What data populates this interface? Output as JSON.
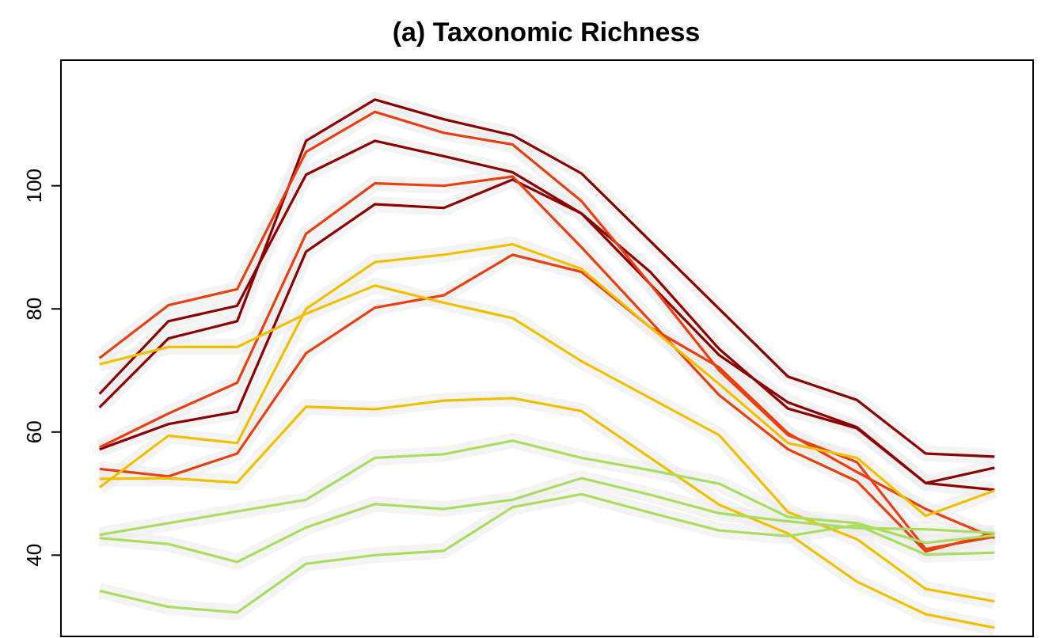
{
  "chart_data": {
    "type": "line",
    "title": "(a) Taxonomic Richness",
    "xlabel": "",
    "ylabel": "",
    "x": [
      1,
      2,
      3,
      4,
      5,
      6,
      7,
      8,
      9,
      10,
      11,
      12,
      13,
      14
    ],
    "xlim": [
      0.44,
      14.56
    ],
    "ylim": [
      26.8,
      120.4
    ],
    "yticks": [
      40,
      60,
      80,
      100
    ],
    "grid": false,
    "legend": "none",
    "confidence_band_color": "#ebebeb",
    "series": [
      {
        "color": "#8b0000",
        "values": [
          64,
          75.2,
          78,
          107.3,
          114,
          110.8,
          108.2,
          102,
          91,
          80,
          69,
          65.2,
          56.5,
          56
        ]
      },
      {
        "color": "#8b0000",
        "values": [
          66.2,
          78,
          80.5,
          101.8,
          107.3,
          104.8,
          102.2,
          95.5,
          86,
          73.5,
          63.8,
          60.6,
          51.7,
          54.2
        ]
      },
      {
        "color": "#8b0000",
        "values": [
          57.2,
          61.3,
          63.3,
          89.3,
          97,
          96.4,
          101,
          95.5,
          84,
          72.5,
          64.8,
          60.8,
          51.7,
          50.6
        ]
      },
      {
        "color": "#e84010",
        "values": [
          72,
          80.6,
          83.2,
          105.5,
          112,
          108.6,
          106.7,
          97.5,
          84,
          70,
          59.5,
          55.1,
          41,
          43
        ]
      },
      {
        "color": "#e84010",
        "values": [
          57.5,
          63,
          68,
          92.2,
          100.4,
          100,
          101.5,
          90,
          78,
          66,
          57.2,
          52,
          40.6,
          43.6
        ]
      },
      {
        "color": "#e84010",
        "values": [
          54,
          52.8,
          56.5,
          72.8,
          80.2,
          82.2,
          88.8,
          86,
          77,
          70.5,
          59.8,
          53.5,
          47.5,
          42.8
        ]
      },
      {
        "color": "#f0c000",
        "values": [
          71,
          73.8,
          73.8,
          79.2,
          83.8,
          81,
          78.5,
          71.5,
          65.5,
          59.5,
          47,
          42.6,
          34.5,
          32.5
        ]
      },
      {
        "color": "#f0c000",
        "values": [
          51,
          59.4,
          58.2,
          80,
          87.6,
          88.8,
          90.5,
          86.5,
          77,
          67.8,
          58.2,
          55.8,
          46.4,
          50.5
        ]
      },
      {
        "color": "#f0c000",
        "values": [
          52.4,
          52.5,
          51.8,
          64.1,
          63.7,
          65.1,
          65.5,
          63.4,
          55.8,
          48.2,
          43.5,
          35.7,
          30.4,
          28.2
        ]
      },
      {
        "color": "#a8dd60",
        "values": [
          43.3,
          45.2,
          47.1,
          49,
          55.8,
          56.4,
          58.6,
          55.8,
          53.8,
          51.6,
          46.2,
          45.2,
          42,
          43.2
        ]
      },
      {
        "color": "#a8dd60",
        "values": [
          42.8,
          41.8,
          38.9,
          44.5,
          48.3,
          47.5,
          49,
          52.5,
          49.8,
          46.8,
          45.5,
          44.4,
          44.2,
          43.6
        ]
      },
      {
        "color": "#a8dd60",
        "values": [
          34.2,
          31.6,
          30.7,
          38.6,
          40,
          40.7,
          47.8,
          49.9,
          46.9,
          44,
          43.1,
          44.9,
          40.1,
          40.4
        ]
      }
    ]
  }
}
